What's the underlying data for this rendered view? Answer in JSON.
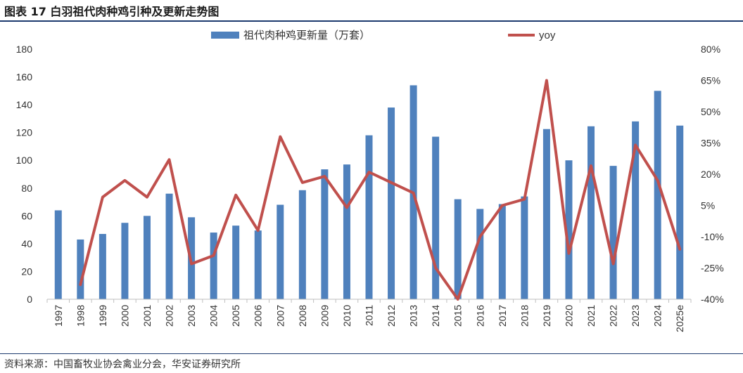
{
  "figure": {
    "title": "图表 17  白羽祖代肉种鸡引种及更新走势图",
    "source": "资料来源：中国畜牧业协会禽业分会，华安证券研究所"
  },
  "chart_data": {
    "type": "bar",
    "categories": [
      "1997",
      "1998",
      "1999",
      "2000",
      "2001",
      "2002",
      "2003",
      "2004",
      "2005",
      "2006",
      "2007",
      "2008",
      "2009",
      "2010",
      "2011",
      "2012",
      "2013",
      "2014",
      "2015",
      "2016",
      "2017",
      "2018",
      "2019",
      "2020",
      "2021",
      "2022",
      "2023",
      "2024",
      "2025e"
    ],
    "series": [
      {
        "name": "祖代肉种鸡更新量（万套）",
        "type": "bar",
        "axis": "left",
        "color": "#4f81bd",
        "values": [
          64,
          43,
          47,
          55,
          60,
          76,
          59,
          48,
          53,
          49.5,
          68,
          78.5,
          93.5,
          97,
          118,
          138,
          154,
          117,
          72,
          65,
          68.5,
          74,
          122.5,
          100,
          124.5,
          96,
          128,
          150,
          125
        ]
      },
      {
        "name": "yoy",
        "type": "line",
        "axis": "right",
        "color": "#c0504d",
        "values": [
          null,
          -33,
          9,
          17,
          9,
          27,
          -23,
          -19,
          10,
          -7,
          38,
          16,
          19,
          4,
          21,
          16,
          11,
          -25,
          -40,
          -10,
          5,
          8,
          65,
          -18,
          24,
          -23,
          34,
          17,
          -16
        ]
      }
    ],
    "ylim_left": [
      0,
      180
    ],
    "yticks_left": [
      "0",
      "20",
      "40",
      "60",
      "80",
      "100",
      "120",
      "140",
      "160",
      "180"
    ],
    "ylim_right": [
      -40,
      80
    ],
    "yticks_right": [
      "-40%",
      "-25%",
      "-10%",
      "5%",
      "20%",
      "35%",
      "50%",
      "65%",
      "80%"
    ],
    "xlabel": "",
    "ylabel": "",
    "legend_position": "top-center",
    "grid": false
  }
}
